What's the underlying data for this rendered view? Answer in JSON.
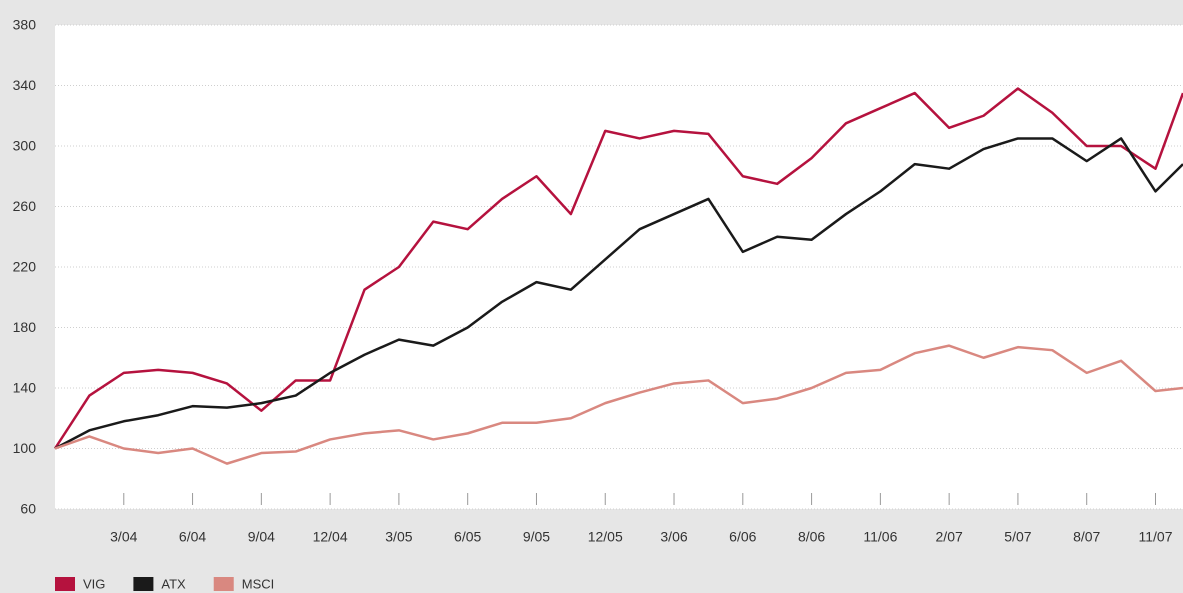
{
  "chart_data": {
    "type": "line",
    "x": [
      0,
      0.5,
      1,
      1.5,
      2,
      2.5,
      3,
      3.5,
      4,
      4.5,
      5,
      5.5,
      6,
      6.5,
      7,
      7.5,
      8,
      8.5,
      9,
      9.5,
      10,
      10.5,
      11,
      11.5,
      12,
      12.5,
      13,
      13.5,
      14,
      14.5,
      15,
      15.5,
      16,
      16.4
    ],
    "series": [
      {
        "name": "VIG",
        "color": "#b5123e",
        "values": [
          100,
          135,
          150,
          152,
          150,
          143,
          125,
          145,
          145,
          205,
          220,
          250,
          245,
          265,
          280,
          255,
          310,
          305,
          310,
          308,
          280,
          275,
          292,
          315,
          325,
          335,
          312,
          320,
          338,
          322,
          300,
          300,
          285,
          335
        ]
      },
      {
        "name": "ATX",
        "color": "#1a1a1a",
        "values": [
          100,
          112,
          118,
          122,
          128,
          127,
          130,
          135,
          150,
          162,
          172,
          168,
          180,
          197,
          210,
          205,
          225,
          245,
          255,
          265,
          230,
          240,
          238,
          255,
          270,
          288,
          285,
          298,
          305,
          305,
          290,
          305,
          270,
          288
        ]
      },
      {
        "name": "MSCI",
        "color": "#d98880",
        "values": [
          100,
          108,
          100,
          97,
          100,
          90,
          97,
          98,
          106,
          110,
          112,
          106,
          110,
          117,
          117,
          120,
          130,
          137,
          143,
          145,
          130,
          133,
          140,
          150,
          152,
          163,
          168,
          160,
          167,
          165,
          150,
          158,
          138,
          140
        ]
      }
    ],
    "xlim": [
      0,
      16.4
    ],
    "xticks": [
      {
        "value": 1,
        "label": "3/04"
      },
      {
        "value": 2,
        "label": "6/04"
      },
      {
        "value": 3,
        "label": "9/04"
      },
      {
        "value": 4,
        "label": "12/04"
      },
      {
        "value": 5,
        "label": "3/05"
      },
      {
        "value": 6,
        "label": "6/05"
      },
      {
        "value": 7,
        "label": "9/05"
      },
      {
        "value": 8,
        "label": "12/05"
      },
      {
        "value": 9,
        "label": "3/06"
      },
      {
        "value": 10,
        "label": "6/06"
      },
      {
        "value": 11,
        "label": "8/06"
      },
      {
        "value": 12,
        "label": "11/06"
      },
      {
        "value": 13,
        "label": "2/07"
      },
      {
        "value": 14,
        "label": "5/07"
      },
      {
        "value": 15,
        "label": "8/07"
      },
      {
        "value": 16,
        "label": "11/07"
      }
    ],
    "ylim": [
      60,
      380
    ],
    "yticks": [
      60,
      100,
      140,
      180,
      220,
      260,
      300,
      340,
      380
    ],
    "grid": true,
    "legend": "bottom-left"
  }
}
